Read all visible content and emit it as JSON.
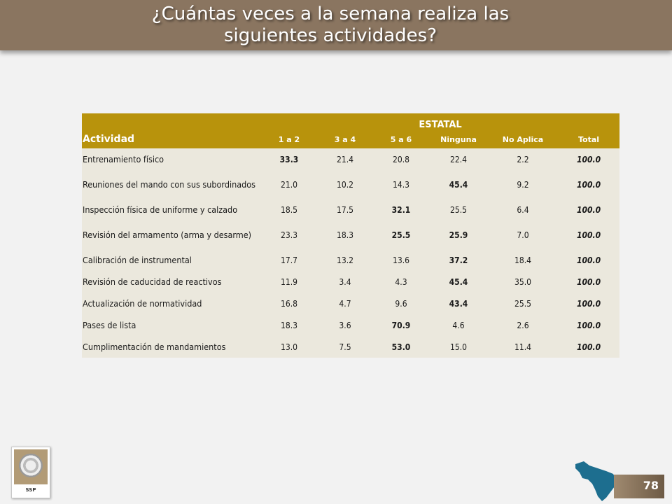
{
  "header": {
    "title_line1": "¿Cuántas veces a la semana realiza las",
    "title_line2": "siguientes actividades?"
  },
  "table": {
    "group_label": "ESTATAL",
    "activity_header": "Actividad",
    "columns": [
      "1 a 2",
      "3 a 4",
      "5 a 6",
      "Ninguna",
      "No Aplica",
      "Total"
    ],
    "rows": [
      {
        "activity": "Entrenamiento físico",
        "values": [
          "33.3",
          "21.4",
          "20.8",
          "22.4",
          "2.2",
          "100.0"
        ]
      },
      {
        "activity": "Reuniones del mando con sus subordinados",
        "values": [
          "21.0",
          "10.2",
          "14.3",
          "45.4",
          "9.2",
          "100.0"
        ]
      },
      {
        "activity": "Inspección física de uniforme y calzado",
        "values": [
          "18.5",
          "17.5",
          "32.1",
          "25.5",
          "6.4",
          "100.0"
        ]
      },
      {
        "activity": "Revisión del armamento (arma y desarme)",
        "values": [
          "23.3",
          "18.3",
          "25.5",
          "25.9",
          "7.0",
          "100.0"
        ]
      },
      {
        "activity": "Calibración de instrumental",
        "values": [
          "17.7",
          "13.2",
          "13.6",
          "37.2",
          "18.4",
          "100.0"
        ]
      },
      {
        "activity": "Revisión de caducidad de reactivos",
        "values": [
          "11.9",
          "3.4",
          "4.3",
          "45.4",
          "35.0",
          "100.0"
        ]
      },
      {
        "activity": "Actualización de normatividad",
        "values": [
          "16.8",
          "4.7",
          "9.6",
          "43.4",
          "25.5",
          "100.0"
        ]
      },
      {
        "activity": "Pases de lista",
        "values": [
          "18.3",
          "3.6",
          "70.9",
          "4.6",
          "2.6",
          "100.0"
        ]
      },
      {
        "activity": "Cumplimentación de mandamientos",
        "values": [
          "13.0",
          "7.5",
          "53.0",
          "15.0",
          "11.4",
          "100.0"
        ]
      }
    ]
  },
  "footer": {
    "logo_label": "SSP",
    "page_number": "78"
  },
  "colors": {
    "header_bg": "#8a7560",
    "table_header_bg": "#b8930c",
    "row_bg": "#ebe8dd",
    "map_color": "#1d6e8f"
  },
  "icons": {
    "logo": "ssp-seal-icon",
    "map": "state-map-icon"
  }
}
